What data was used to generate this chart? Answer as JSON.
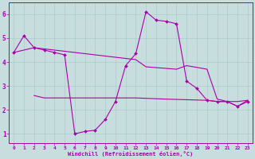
{
  "xlabel": "Windchill (Refroidissement éolien,°C)",
  "bg_color": "#c8dede",
  "line_color": "#aa00aa",
  "grid_color": "#aacccc",
  "xlim": [
    -0.5,
    23.5
  ],
  "ylim": [
    0.6,
    6.5
  ],
  "xticks": [
    0,
    1,
    2,
    3,
    4,
    5,
    6,
    7,
    8,
    9,
    10,
    11,
    12,
    13,
    14,
    15,
    16,
    17,
    18,
    19,
    20,
    21,
    22,
    23
  ],
  "yticks": [
    1,
    2,
    3,
    4,
    5,
    6
  ],
  "line1_x": [
    0,
    1,
    2,
    3,
    4,
    5,
    6,
    7,
    8,
    9,
    10,
    11,
    12,
    13,
    14,
    15,
    16,
    17,
    18,
    19,
    20,
    21,
    22,
    23
  ],
  "line1_y": [
    4.4,
    5.1,
    4.6,
    4.5,
    4.4,
    4.3,
    1.0,
    1.1,
    1.15,
    1.6,
    2.35,
    3.85,
    4.35,
    6.1,
    5.75,
    5.7,
    5.6,
    3.2,
    2.9,
    2.4,
    2.35,
    2.35,
    2.15,
    2.35
  ],
  "line2_x": [
    0,
    2,
    12,
    13,
    16,
    17,
    19,
    20,
    21,
    22,
    23
  ],
  "line2_y": [
    4.4,
    4.6,
    4.1,
    3.8,
    3.7,
    3.85,
    3.7,
    2.45,
    2.35,
    2.35,
    2.4
  ],
  "line3_x": [
    2,
    3,
    4,
    5,
    10,
    12,
    15,
    19,
    20,
    21,
    22,
    23
  ],
  "line3_y": [
    2.6,
    2.5,
    2.5,
    2.5,
    2.5,
    2.5,
    2.45,
    2.4,
    2.35,
    2.35,
    2.15,
    2.4
  ]
}
